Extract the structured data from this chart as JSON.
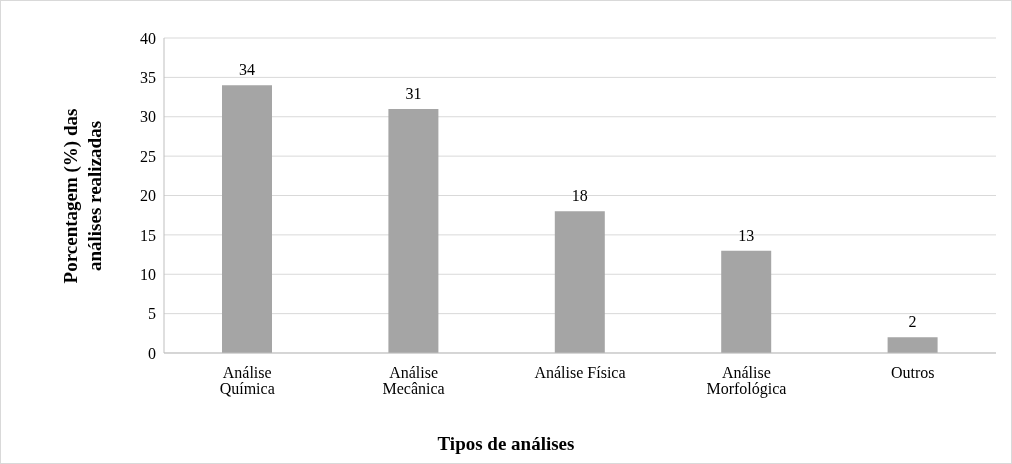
{
  "chart_data": {
    "type": "bar",
    "xlabel": "Tipos de análises",
    "ylabel": "Porcentagem (%) das análises realizadas",
    "categories": [
      "Análise Química",
      "Análise Mecânica",
      "Análise Física",
      "Análise Morfológica",
      "Outros"
    ],
    "values": [
      34,
      31,
      18,
      13,
      2
    ],
    "color": "#a5a5a5",
    "ylim": [
      0,
      40
    ],
    "yticks": [
      0,
      5,
      10,
      15,
      20,
      25,
      30,
      35,
      40
    ],
    "grid": "y",
    "data_labels": true,
    "legend": false
  }
}
